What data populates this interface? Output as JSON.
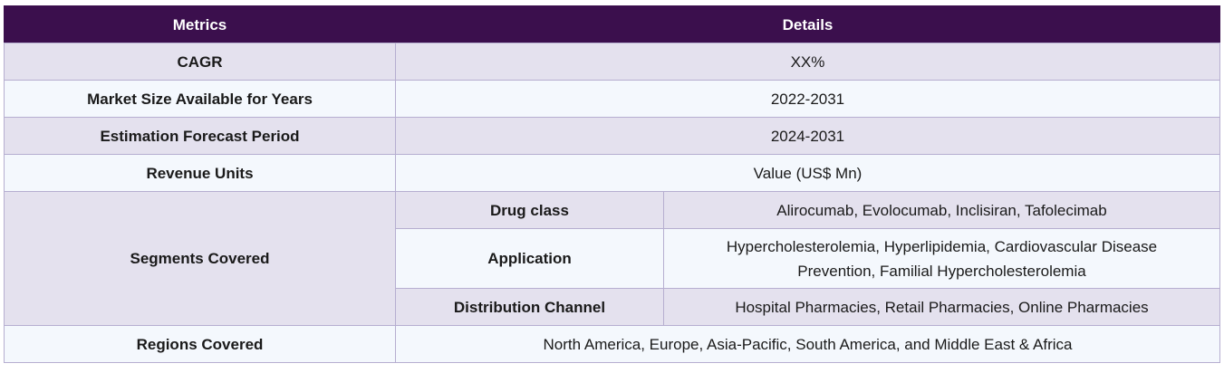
{
  "headers": {
    "metrics": "Metrics",
    "details": "Details"
  },
  "rows": {
    "cagr": {
      "metric": "CAGR",
      "detail": "XX%"
    },
    "market_size": {
      "metric": "Market Size Available for Years",
      "detail": "2022-2031"
    },
    "forecast": {
      "metric": "Estimation Forecast Period",
      "detail": "2024-2031"
    },
    "revenue_units": {
      "metric": "Revenue Units",
      "detail": "Value (US$ Mn)"
    },
    "segments": {
      "metric": "Segments Covered",
      "items": [
        {
          "label": "Drug class",
          "value": "Alirocumab, Evolocumab, Inclisiran, Tafolecimab"
        },
        {
          "label": "Application",
          "value": "Hypercholesterolemia, Hyperlipidemia, Cardiovascular Disease Prevention, Familial Hypercholesterolemia"
        },
        {
          "label": "Distribution Channel",
          "value": "Hospital Pharmacies, Retail Pharmacies, Online Pharmacies"
        }
      ]
    },
    "regions": {
      "metric": "Regions Covered",
      "detail": "North America, Europe, Asia-Pacific, South America, and Middle East & Africa"
    }
  }
}
